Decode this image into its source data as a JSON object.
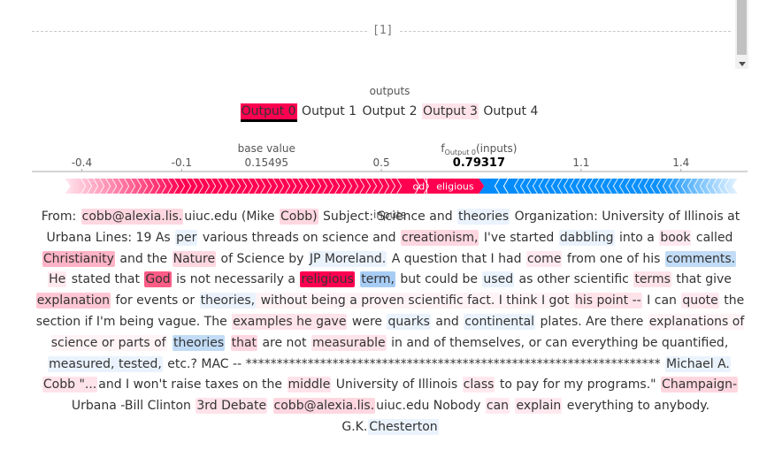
{
  "separator_label": "[1]",
  "outputs": {
    "title": "outputs",
    "selected": 0,
    "labels": [
      "Output 0",
      "Output 1",
      "Output 2",
      "Output 3",
      "Output 4"
    ],
    "colors": [
      "#ff0051",
      "#ffffff",
      "#ffffff",
      "#ffe3ea",
      "#ffffff"
    ]
  },
  "force_plot": {
    "base_value_label": "base value",
    "f_label": "f",
    "f_sub": "Output 0",
    "f_suffix": "(inputs)",
    "base_value": 0.15495,
    "base_value_text": "0.15495",
    "output_value": 0.79317,
    "output_value_text": "0.79317",
    "axis_min": -0.55,
    "axis_max": 1.6,
    "ticks": [
      "-0.4",
      "-0.1",
      "0.5",
      "1.1",
      "1.4"
    ],
    "positive_start": -0.45,
    "negative_end": 1.57,
    "positive_color": "#ff0051",
    "negative_color": "#008bfb",
    "bar_labels": [
      "od",
      "eligious"
    ],
    "inputs_title": "inputs"
  },
  "tokens": [
    {
      "t": "From: ",
      "c": ""
    },
    {
      "t": "cobb@alexia.lis.",
      "c": "#ffd7e1"
    },
    {
      "t": "uiuc.edu (Mike ",
      "c": ""
    },
    {
      "t": "Cobb)",
      "c": "#ffd7e1"
    },
    {
      "t": " Subject: Science and ",
      "c": ""
    },
    {
      "t": "theories",
      "c": "#eaf3fd"
    },
    {
      "t": " Organization: University of Illinois at Urbana Lines: 19 As ",
      "c": ""
    },
    {
      "t": "per",
      "c": "#eaf3fd"
    },
    {
      "t": " various threads on science and ",
      "c": ""
    },
    {
      "t": "creationism,",
      "c": "#ffd7e1"
    },
    {
      "t": " I've started ",
      "c": ""
    },
    {
      "t": "dabbling",
      "c": "#eaf3fd"
    },
    {
      "t": " into a ",
      "c": ""
    },
    {
      "t": "book",
      "c": "#ffe9ef"
    },
    {
      "t": " called ",
      "c": ""
    },
    {
      "t": "Christianity",
      "c": "#ffb3c6"
    },
    {
      "t": " and the ",
      "c": ""
    },
    {
      "t": "Nature",
      "c": "#ffd7e1"
    },
    {
      "t": " of Science by ",
      "c": ""
    },
    {
      "t": "JP Moreland.",
      "c": "#eaf3fd"
    },
    {
      "t": " A question that I had ",
      "c": ""
    },
    {
      "t": "come",
      "c": "#ffe9ef"
    },
    {
      "t": " from one of his ",
      "c": ""
    },
    {
      "t": "comments.",
      "c": "#c2dcf7"
    },
    {
      "t": " ",
      "c": ""
    },
    {
      "t": "He",
      "c": "#ffe9ef"
    },
    {
      "t": " stated that ",
      "c": ""
    },
    {
      "t": "God",
      "c": "#ff5c86"
    },
    {
      "t": " is not necessarily a ",
      "c": ""
    },
    {
      "t": "religious",
      "c": "#ff0051"
    },
    {
      "t": " ",
      "c": ""
    },
    {
      "t": "term,",
      "c": "#a8cdf5"
    },
    {
      "t": " but could be ",
      "c": ""
    },
    {
      "t": "used",
      "c": "#eaf3fd"
    },
    {
      "t": " as other scientific ",
      "c": ""
    },
    {
      "t": "terms",
      "c": "#ffe3ea"
    },
    {
      "t": " that give ",
      "c": ""
    },
    {
      "t": "explanation",
      "c": "#ffc7d5"
    },
    {
      "t": " for events or ",
      "c": ""
    },
    {
      "t": "theories,",
      "c": "#eaf3fd"
    },
    {
      "t": " without being a proven scientific fact. I think I got ",
      "c": "#fff3f6"
    },
    {
      "t": "his point --",
      "c": "#ffe3ea"
    },
    {
      "t": " I can ",
      "c": ""
    },
    {
      "t": "quote",
      "c": "#ffe9ef"
    },
    {
      "t": " the section if I'm being vague. The ",
      "c": ""
    },
    {
      "t": "examples he gave",
      "c": "#ffe3ea"
    },
    {
      "t": " were ",
      "c": ""
    },
    {
      "t": "quarks",
      "c": "#eaf3fd"
    },
    {
      "t": " and ",
      "c": ""
    },
    {
      "t": "continental",
      "c": "#eaf3fd"
    },
    {
      "t": " plates. Are there ",
      "c": ""
    },
    {
      "t": "explanations of science or parts of",
      "c": "#fff3f6"
    },
    {
      "t": " ",
      "c": ""
    },
    {
      "t": "theories",
      "c": "#c2dcf7"
    },
    {
      "t": " ",
      "c": ""
    },
    {
      "t": "that",
      "c": "#ffd7e1"
    },
    {
      "t": " are not ",
      "c": ""
    },
    {
      "t": "measurable",
      "c": "#ffe3ea"
    },
    {
      "t": " in and of themselves, or can everything be quantified, ",
      "c": ""
    },
    {
      "t": "measured, tested,",
      "c": "#eaf3fd"
    },
    {
      "t": " etc.? MAC -- ******************************************************************* ",
      "c": ""
    },
    {
      "t": "Michael A.",
      "c": "#eaf3fd"
    },
    {
      "t": " ",
      "c": ""
    },
    {
      "t": "Cobb \"...",
      "c": "#ffe3ea"
    },
    {
      "t": "and I won't raise taxes on the ",
      "c": ""
    },
    {
      "t": "middle",
      "c": "#ffe3ea"
    },
    {
      "t": " University of Illinois ",
      "c": ""
    },
    {
      "t": "class",
      "c": "#ffe9ef"
    },
    {
      "t": " to pay for my programs.\" ",
      "c": ""
    },
    {
      "t": "Champaign-",
      "c": "#ffd7e1"
    },
    {
      "t": "Urbana -Bill Clinton ",
      "c": ""
    },
    {
      "t": "3rd Debate",
      "c": "#ffe3ea"
    },
    {
      "t": " ",
      "c": ""
    },
    {
      "t": "cobb@alexia.lis.",
      "c": "#ffd7e1"
    },
    {
      "t": "uiuc.edu Nobody ",
      "c": ""
    },
    {
      "t": "can",
      "c": "#ffe9ef"
    },
    {
      "t": " ",
      "c": ""
    },
    {
      "t": "explain",
      "c": "#ffe9ef"
    },
    {
      "t": " everything to anybody. G.K.",
      "c": ""
    },
    {
      "t": "Chesterton",
      "c": "#eaf3fd"
    }
  ]
}
